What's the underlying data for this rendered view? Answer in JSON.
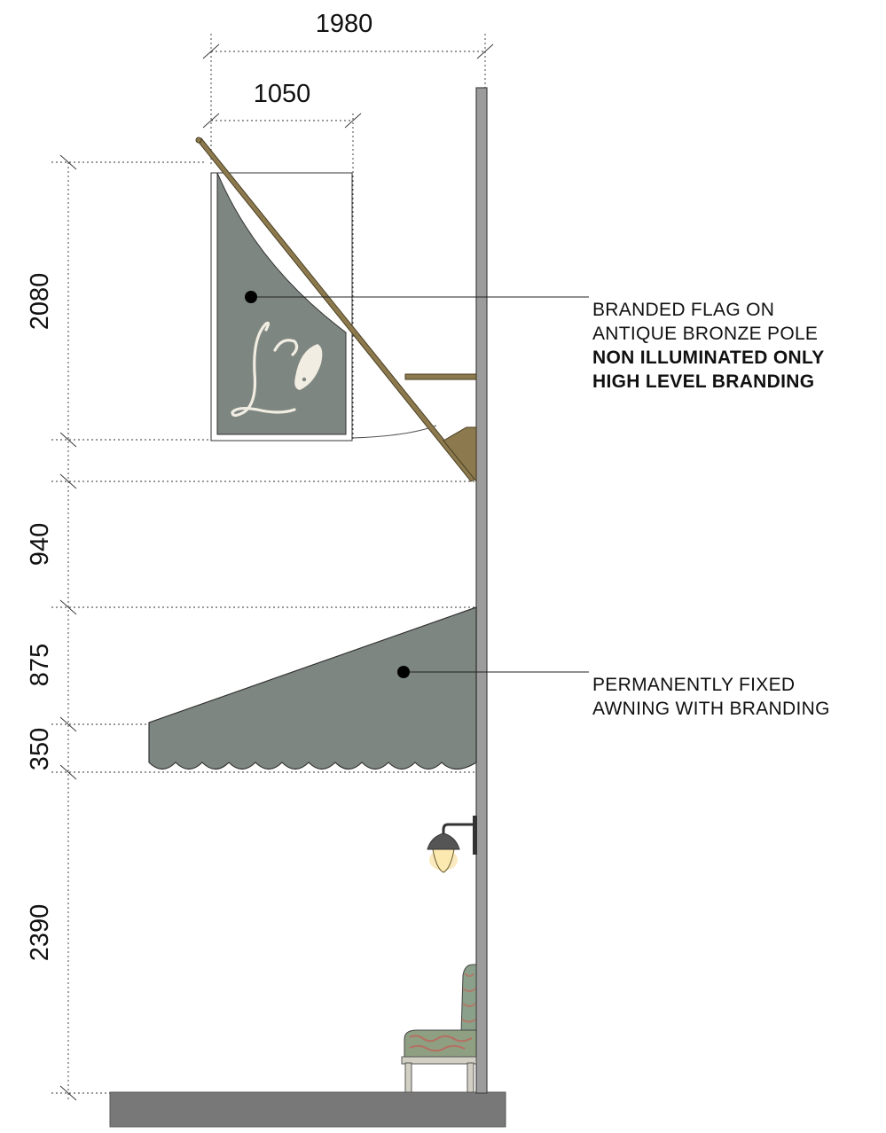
{
  "dimensions": {
    "horizontal": [
      "1980",
      "1050"
    ],
    "vertical": [
      "2080",
      "940",
      "875",
      "350",
      "2390"
    ]
  },
  "callouts": {
    "flag": {
      "line1": "BRANDED FLAG ON",
      "line2": "ANTIQUE BRONZE POLE",
      "line3": "NON ILLUMINATED ONLY",
      "line4": "HIGH LEVEL BRANDING"
    },
    "awning": {
      "line1": "PERMANENTLY FIXED",
      "line2": "AWNING WITH BRANDING"
    }
  },
  "colors": {
    "flag_fabric": "#7d8680",
    "awning_fabric": "#7d8680",
    "bronze": "#8c7a4e",
    "wall": "#9a9a9a",
    "ground": "#787878",
    "lamp_glow": "#f6d98a"
  }
}
